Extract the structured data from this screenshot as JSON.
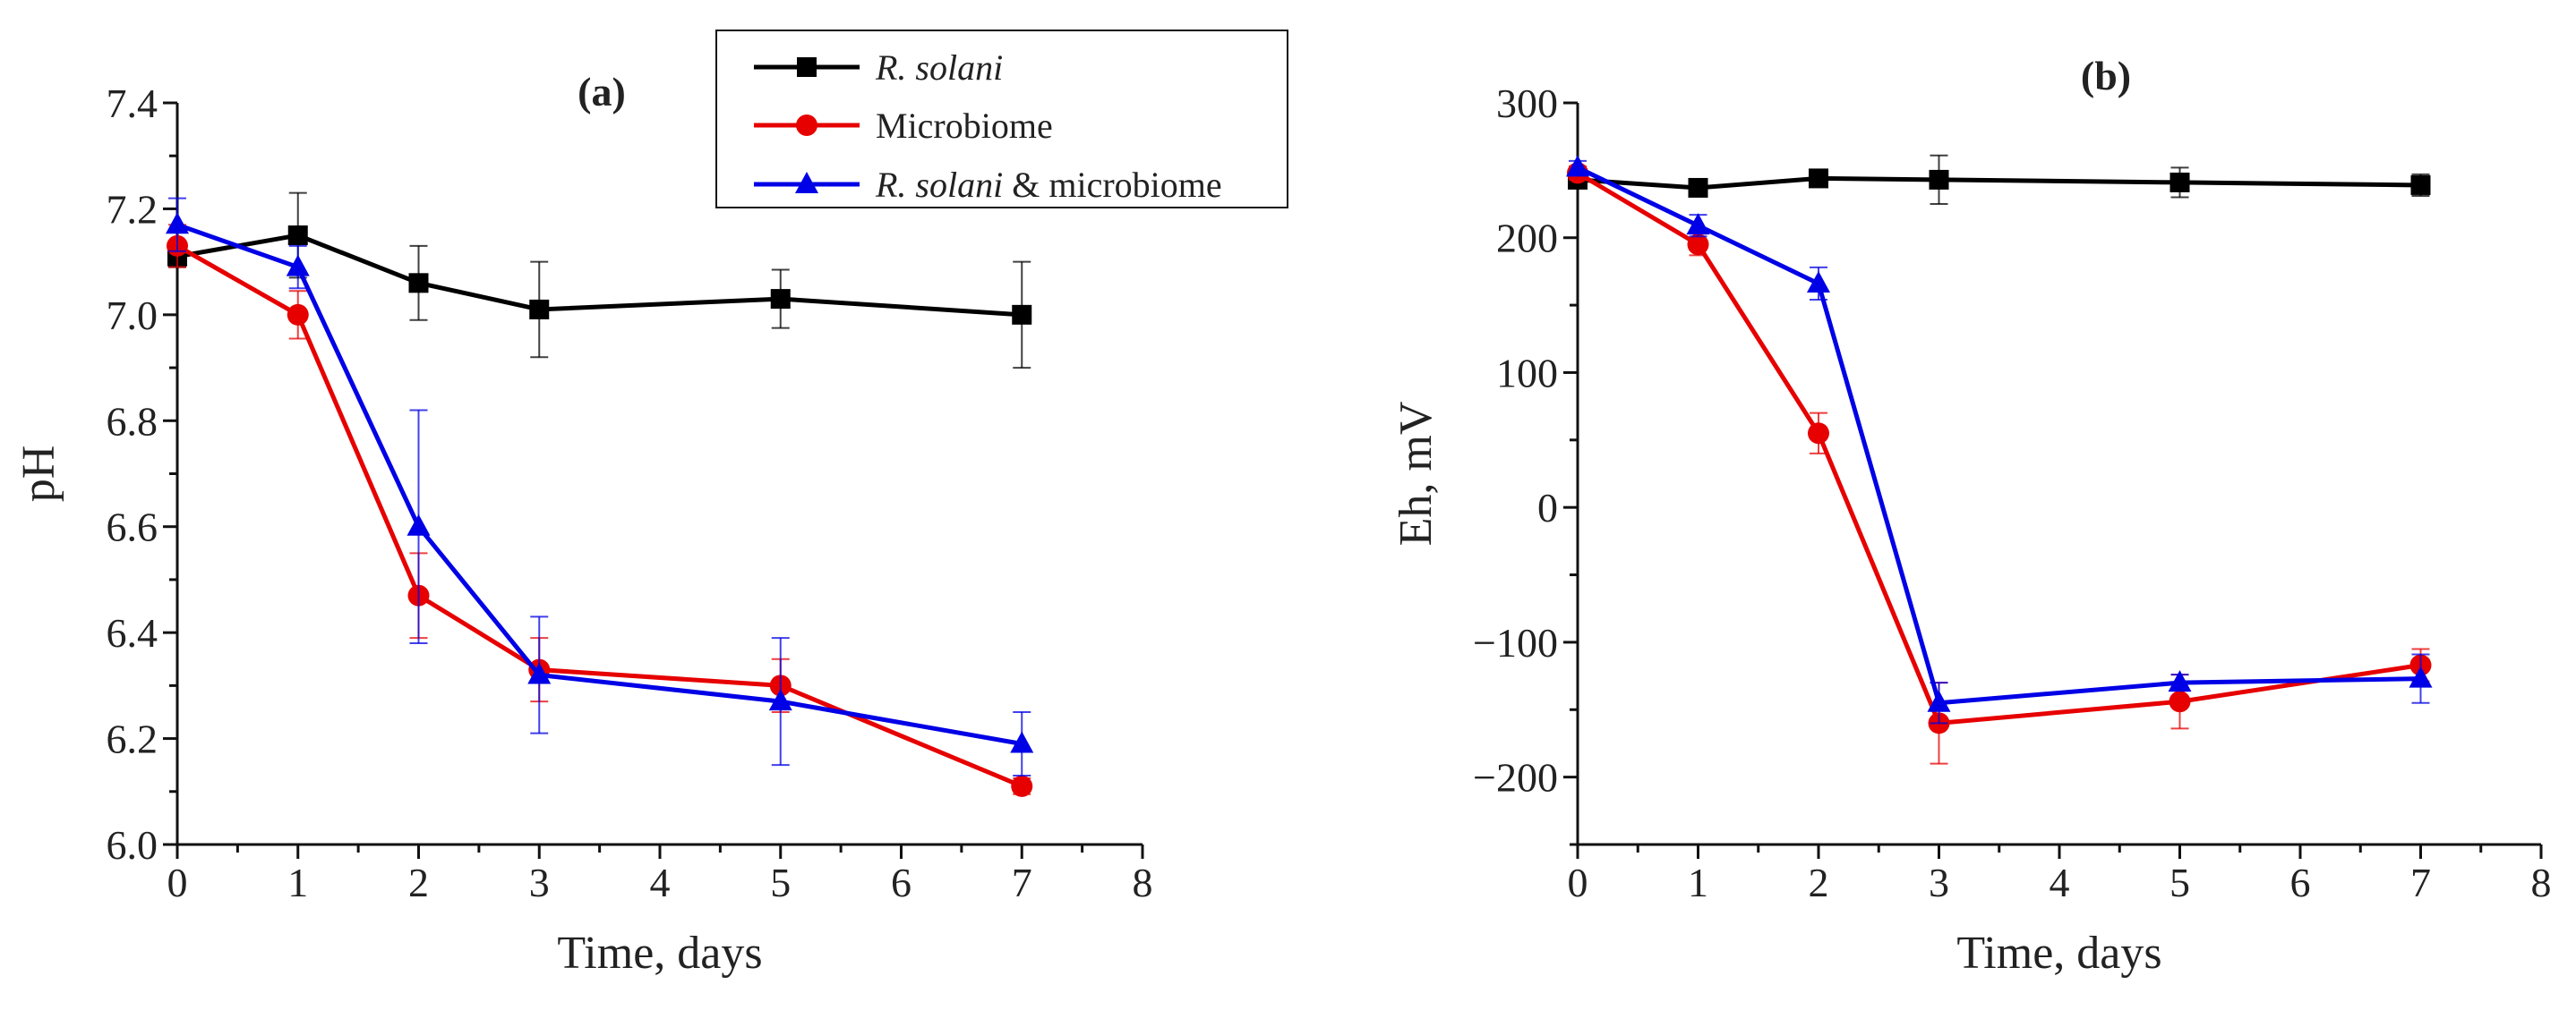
{
  "legend": {
    "entries": [
      {
        "prefix": "R. solani",
        "suffix": "",
        "italic_prefix": true,
        "color": "#000000",
        "marker": "square"
      },
      {
        "prefix": "",
        "suffix": "Microbiome",
        "italic_prefix": false,
        "color": "#e60000",
        "marker": "circle"
      },
      {
        "prefix": "R. solani",
        "suffix": " & microbiome",
        "italic_prefix": true,
        "color": "#0000e6",
        "marker": "triangle"
      }
    ]
  },
  "chart_data": [
    {
      "type": "line",
      "panel_label": "(a)",
      "title": "",
      "xlabel": "Time, days",
      "ylabel": "pH",
      "xlim": [
        0,
        8
      ],
      "ylim": [
        6.0,
        7.4
      ],
      "xticks": [
        0,
        1,
        2,
        3,
        4,
        5,
        6,
        7,
        8
      ],
      "yticks": [
        6.0,
        6.2,
        6.4,
        6.6,
        6.8,
        7.0,
        7.2,
        7.4
      ],
      "ytick_labels": [
        "6.0",
        "6.2",
        "6.4",
        "6.6",
        "6.8",
        "7.0",
        "7.2",
        "7.4"
      ],
      "series": [
        {
          "name": "R. solani",
          "color": "#000000",
          "marker": "square",
          "x": [
            0,
            1,
            2,
            3,
            5,
            7
          ],
          "y": [
            7.11,
            7.15,
            7.06,
            7.01,
            7.03,
            7.0
          ],
          "err": [
            0.02,
            0.08,
            0.07,
            0.09,
            0.055,
            0.1
          ]
        },
        {
          "name": "Microbiome",
          "color": "#e60000",
          "marker": "circle",
          "x": [
            0,
            1,
            2,
            3,
            5,
            7
          ],
          "y": [
            7.13,
            7.0,
            6.47,
            6.33,
            6.3,
            6.11
          ],
          "err": [
            0.04,
            0.045,
            0.08,
            0.06,
            0.05,
            0.015
          ]
        },
        {
          "name": "R. solani & microbiome",
          "color": "#0000e6",
          "marker": "triangle",
          "x": [
            0,
            1,
            2,
            3,
            5,
            7
          ],
          "y": [
            7.17,
            7.09,
            6.6,
            6.32,
            6.27,
            6.19
          ],
          "err": [
            0.05,
            0.04,
            0.22,
            0.11,
            0.12,
            0.06
          ]
        }
      ]
    },
    {
      "type": "line",
      "panel_label": "(b)",
      "title": "",
      "xlabel": "Time, days",
      "ylabel": "Eh, mV",
      "xlim": [
        0,
        8
      ],
      "ylim": [
        -250,
        300
      ],
      "xticks": [
        0,
        1,
        2,
        3,
        4,
        5,
        6,
        7,
        8
      ],
      "yticks": [
        -200,
        -100,
        0,
        100,
        200,
        300
      ],
      "ytick_labels": [
        "−200",
        "−100",
        "0",
        "100",
        "200",
        "300"
      ],
      "series": [
        {
          "name": "R. solani",
          "color": "#000000",
          "marker": "square",
          "x": [
            0,
            1,
            2,
            3,
            5,
            7
          ],
          "y": [
            243,
            237,
            244,
            243,
            241,
            239
          ],
          "err": [
            4,
            6,
            5,
            18,
            11,
            8
          ]
        },
        {
          "name": "Microbiome",
          "color": "#e60000",
          "marker": "circle",
          "x": [
            0,
            1,
            2,
            3,
            5,
            7
          ],
          "y": [
            248,
            195,
            55,
            -160,
            -144,
            -117
          ],
          "err": [
            5,
            8,
            15,
            30,
            20,
            12
          ]
        },
        {
          "name": "R. solani & microbiome",
          "color": "#0000e6",
          "marker": "triangle",
          "x": [
            0,
            1,
            2,
            3,
            5,
            7
          ],
          "y": [
            252,
            209,
            166,
            -145,
            -130,
            -127
          ],
          "err": [
            5,
            8,
            12,
            15,
            6,
            18
          ]
        }
      ]
    }
  ]
}
